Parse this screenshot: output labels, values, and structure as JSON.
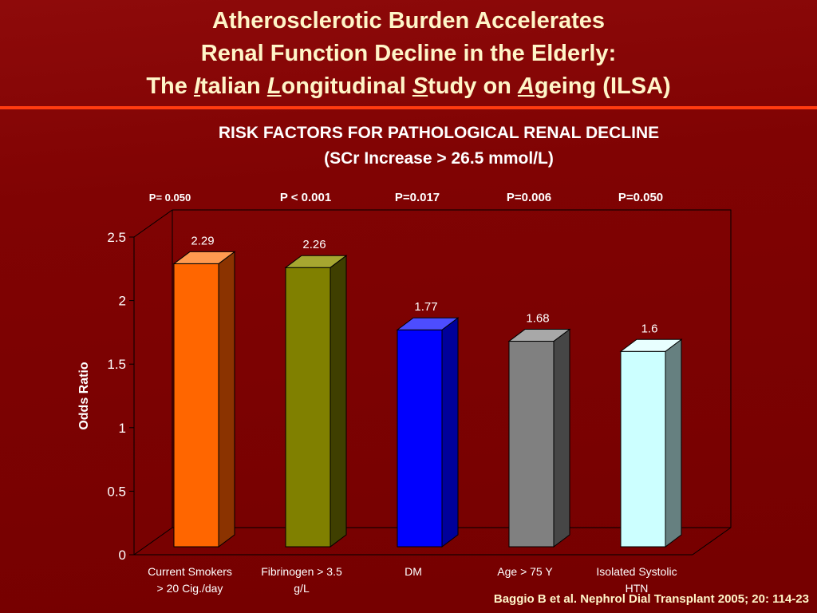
{
  "slide": {
    "title_line1": "Atherosclerotic Burden Accelerates",
    "title_line2": "Renal Function Decline in the Elderly:",
    "title_line3_words": [
      {
        "text": "The ",
        "emph": false
      },
      {
        "text": "I",
        "emph": true
      },
      {
        "text": "talian ",
        "emph": false
      },
      {
        "text": "L",
        "emph": true
      },
      {
        "text": "ongitudinal ",
        "emph": false
      },
      {
        "text": "S",
        "emph": true
      },
      {
        "text": "tudy on ",
        "emph": false
      },
      {
        "text": "A",
        "emph": true
      },
      {
        "text": "geing (ILSA)",
        "emph": false
      }
    ],
    "subtitle": "RISK FACTORS FOR PATHOLOGICAL RENAL DECLINE",
    "subtitle2": "(SCr Increase > 26.5 mmol/L)",
    "citation": "Baggio B et al. Nephrol Dial Transplant 2005; 20: 114-23",
    "colors": {
      "background": "#7a0000",
      "title_text": "#fff5c8",
      "rule": "#ff3b10"
    }
  },
  "chart_data": {
    "type": "bar",
    "categories": [
      [
        "Current Smokers",
        "> 20 Cig./day"
      ],
      [
        "Fibrinogen > 3.5",
        "g/L"
      ],
      [
        "DM"
      ],
      [
        "Age > 75 Y"
      ],
      [
        "Isolated Systolic",
        "HTN"
      ]
    ],
    "values": [
      2.29,
      2.26,
      1.77,
      1.68,
      1.6
    ],
    "value_labels": [
      "2.29",
      "2.26",
      "1.77",
      "1.68",
      "1.6"
    ],
    "p_values": [
      "P= 0.050",
      "P < 0.001",
      "P=0.017",
      "P=0.006",
      "P=0.050"
    ],
    "colors": [
      {
        "front": "#ff6600",
        "side": "#8b3300",
        "top": "#ff9a50"
      },
      {
        "front": "#808000",
        "side": "#3f3f00",
        "top": "#a6a630"
      },
      {
        "front": "#0000ff",
        "side": "#00009a",
        "top": "#4d4dff"
      },
      {
        "front": "#808080",
        "side": "#464646",
        "top": "#a8a8a8"
      },
      {
        "front": "#ccffff",
        "side": "#668080",
        "top": "#e8ffff"
      }
    ],
    "ylabel": "Odds Ratio",
    "ylim": [
      0,
      2.5
    ],
    "yticks": [
      "0",
      "0.5",
      "1",
      "1.5",
      "2",
      "2.5"
    ],
    "grid": false,
    "style": "3d"
  }
}
